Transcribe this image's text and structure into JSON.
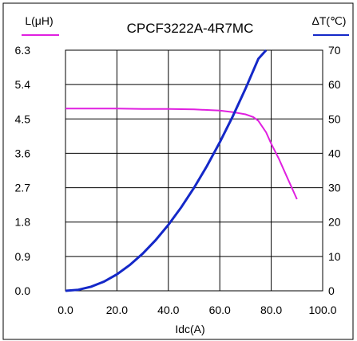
{
  "chart_data": {
    "type": "line",
    "title": "CPCF3222A-4R7MC",
    "xlabel": "Idc(A)",
    "ylabel_left": "L(μH)",
    "ylabel_right": "ΔT(℃)",
    "xlim": [
      0,
      100
    ],
    "ylim_left": [
      0,
      6.3
    ],
    "ylim_right": [
      0,
      70
    ],
    "x_ticks": [
      "0.0",
      "20.0",
      "40.0",
      "60.0",
      "80.0",
      "100.0"
    ],
    "y_left_ticks": [
      "0.0",
      "0.9",
      "1.8",
      "2.7",
      "3.6",
      "4.5",
      "5.4",
      "6.3"
    ],
    "y_right_ticks": [
      "0",
      "10",
      "20",
      "30",
      "40",
      "50",
      "60",
      "70"
    ],
    "grid": true,
    "series": [
      {
        "name": "L(μH)",
        "axis": "left",
        "color": "#e020e0",
        "x": [
          0,
          10,
          20,
          30,
          40,
          50,
          60,
          65,
          70,
          73,
          75,
          78,
          80,
          83,
          86,
          90
        ],
        "y": [
          4.77,
          4.77,
          4.77,
          4.76,
          4.76,
          4.75,
          4.72,
          4.68,
          4.62,
          4.55,
          4.45,
          4.15,
          3.85,
          3.45,
          3.0,
          2.4
        ]
      },
      {
        "name": "ΔT(℃)",
        "axis": "right",
        "color": "#1428c8",
        "x": [
          0,
          5,
          10,
          15,
          20,
          25,
          30,
          35,
          40,
          45,
          50,
          55,
          60,
          65,
          70,
          75,
          78
        ],
        "y": [
          0,
          0.3,
          1.2,
          2.7,
          4.8,
          7.5,
          10.8,
          14.7,
          19.2,
          24.3,
          30.0,
          36.3,
          43.2,
          50.7,
          58.8,
          67.5,
          70
        ]
      }
    ]
  }
}
